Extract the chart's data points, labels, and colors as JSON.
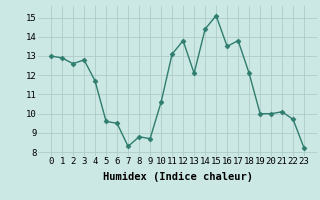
{
  "x": [
    0,
    1,
    2,
    3,
    4,
    5,
    6,
    7,
    8,
    9,
    10,
    11,
    12,
    13,
    14,
    15,
    16,
    17,
    18,
    19,
    20,
    21,
    22,
    23
  ],
  "y": [
    13.0,
    12.9,
    12.6,
    12.8,
    11.7,
    9.6,
    9.5,
    8.3,
    8.8,
    8.7,
    10.6,
    13.1,
    13.8,
    12.1,
    14.4,
    15.1,
    13.5,
    13.8,
    12.1,
    10.0,
    10.0,
    10.1,
    9.7,
    8.2
  ],
  "line_color": "#2e7d6e",
  "marker": "D",
  "marker_size": 2.5,
  "bg_color": "#cce8e4",
  "grid_color": "#b0ccc9",
  "xlabel": "Humidex (Indice chaleur)",
  "ylim": [
    7.8,
    15.6
  ],
  "yticks": [
    8,
    9,
    10,
    11,
    12,
    13,
    14,
    15
  ],
  "xtick_labels": [
    "0",
    "1",
    "2",
    "3",
    "4",
    "5",
    "6",
    "7",
    "8",
    "9",
    "10",
    "11",
    "12",
    "13",
    "14",
    "15",
    "16",
    "17",
    "18",
    "19",
    "20",
    "21",
    "22",
    "23"
  ],
  "xlabel_fontsize": 7.5,
  "tick_fontsize": 6.5,
  "linewidth": 1.0
}
